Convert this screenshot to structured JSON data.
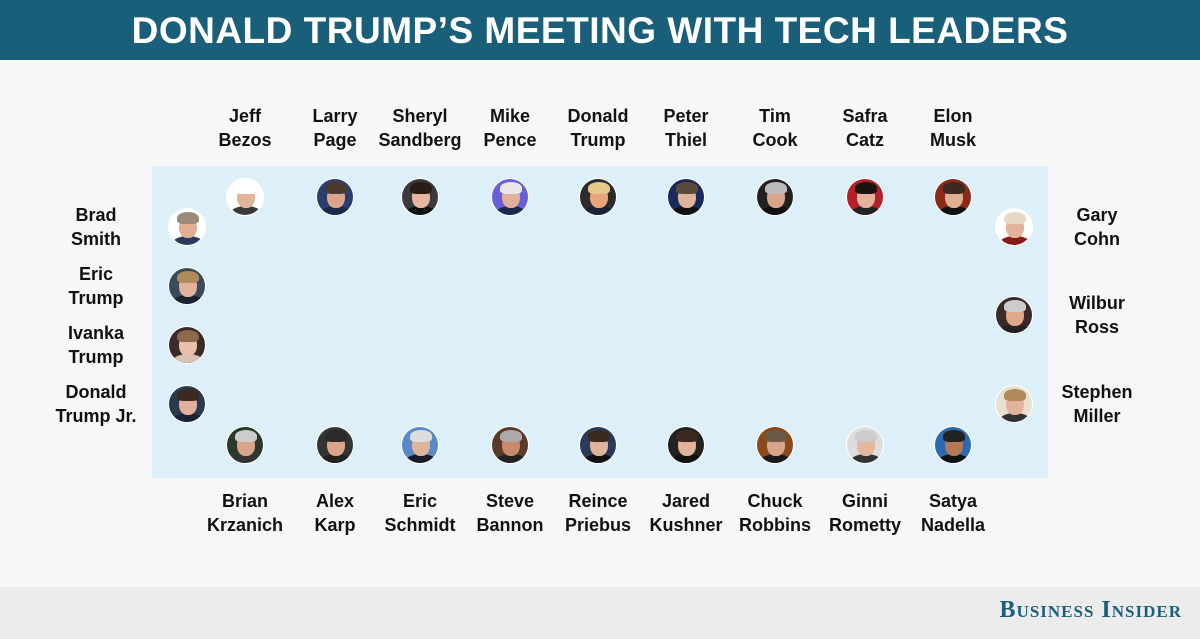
{
  "title": "DONALD TRUMP’S MEETING WITH TECH LEADERS",
  "brand": "Business Insider",
  "top_row": [
    {
      "line1": "Jeff",
      "line2": "Bezos",
      "bg": "#ffffff",
      "hair": "#ffffff",
      "skin": "#e2b49a",
      "body": "#3a3a3a"
    },
    {
      "line1": "Larry",
      "line2": "Page",
      "bg": "#2c3e70",
      "hair": "#4a3a2c",
      "skin": "#d9a58a",
      "body": "#1e2a4a"
    },
    {
      "line1": "Sheryl",
      "line2": "Sandberg",
      "bg": "#3a3a3a",
      "hair": "#2a1c14",
      "skin": "#e6b7a0",
      "body": "#111111"
    },
    {
      "line1": "Mike",
      "line2": "Pence",
      "bg": "#6b5fd6",
      "hair": "#e8e8e8",
      "skin": "#e0b09a",
      "body": "#1a2a4a"
    },
    {
      "line1": "Donald",
      "line2": "Trump",
      "bg": "#2b2b2b",
      "hair": "#e6c98a",
      "skin": "#e8a57a",
      "body": "#1a2233"
    },
    {
      "line1": "Peter",
      "line2": "Thiel",
      "bg": "#1a2a5a",
      "hair": "#5a4a3a",
      "skin": "#e0b49a",
      "body": "#111111"
    },
    {
      "line1": "Tim",
      "line2": "Cook",
      "bg": "#222222",
      "hair": "#bbbbbb",
      "skin": "#d9a58a",
      "body": "#111111"
    },
    {
      "line1": "Safra",
      "line2": "Catz",
      "bg": "#b3202a",
      "hair": "#1a1410",
      "skin": "#e3b29a",
      "body": "#222222"
    },
    {
      "line1": "Elon",
      "line2": "Musk",
      "bg": "#8a2a1a",
      "hair": "#3a2a20",
      "skin": "#e0ae92",
      "body": "#111111"
    }
  ],
  "bottom_row": [
    {
      "line1": "Brian",
      "line2": "Krzanich",
      "bg": "#2a3a2a",
      "hair": "#cccccc",
      "skin": "#d9a58a",
      "body": "#333333"
    },
    {
      "line1": "Alex",
      "line2": "Karp",
      "bg": "#333333",
      "hair": "#2a2a2a",
      "skin": "#d9a58a",
      "body": "#222222"
    },
    {
      "line1": "Eric",
      "line2": "Schmidt",
      "bg": "#5a8ac6",
      "hair": "#dddddd",
      "skin": "#e0b49a",
      "body": "#1a1a2a"
    },
    {
      "line1": "Steve",
      "line2": "Bannon",
      "bg": "#5a3a2a",
      "hair": "#aaaaaa",
      "skin": "#c98a6a",
      "body": "#222222"
    },
    {
      "line1": "Reince",
      "line2": "Priebus",
      "bg": "#2a3a5a",
      "hair": "#3a2a20",
      "skin": "#e0b49a",
      "body": "#111111"
    },
    {
      "line1": "Jared",
      "line2": "Kushner",
      "bg": "#222222",
      "hair": "#3a2a20",
      "skin": "#e3b29a",
      "body": "#111111"
    },
    {
      "line1": "Chuck",
      "line2": "Robbins",
      "bg": "#8a4a1a",
      "hair": "#6a5a4a",
      "skin": "#d9a58a",
      "body": "#1a1a1a"
    },
    {
      "line1": "Ginni",
      "line2": "Rometty",
      "bg": "#dddddd",
      "hair": "#cccccc",
      "skin": "#e6b7a0",
      "body": "#333333"
    },
    {
      "line1": "Satya",
      "line2": "Nadella",
      "bg": "#2a6ab0",
      "hair": "#222222",
      "skin": "#b07a5a",
      "body": "#111111"
    }
  ],
  "left_side": [
    {
      "line1": "Brad",
      "line2": "Smith",
      "bg": "#ffffff",
      "hair": "#9a8a7a",
      "skin": "#e0ae92",
      "body": "#2a3a5a"
    },
    {
      "line1": "Eric",
      "line2": "Trump",
      "bg": "#3a4a5a",
      "hair": "#b08a5a",
      "skin": "#e3b29a",
      "body": "#1a2233"
    },
    {
      "line1": "Ivanka",
      "line2": "Trump",
      "bg": "#3a2a2a",
      "hair": "#8a6a4a",
      "skin": "#ebc0a8",
      "body": "#d9c3b0"
    },
    {
      "line1": "Donald",
      "line2": "Trump Jr.",
      "bg": "#2a3a4a",
      "hair": "#3a2a20",
      "skin": "#e0b09a",
      "body": "#1a2233"
    }
  ],
  "right_side": [
    {
      "line1": "Gary",
      "line2": "Cohn",
      "bg": "#ffffff",
      "hair": "#e8d8c8",
      "skin": "#e3b29a",
      "body": "#8a1a1a"
    },
    {
      "line1": "Wilbur",
      "line2": "Ross",
      "bg": "#3a2a2a",
      "hair": "#cccccc",
      "skin": "#e0a88a",
      "body": "#222222"
    },
    {
      "line1": "Stephen",
      "line2": "Miller",
      "bg": "#e8e0d0",
      "hair": "#b08a5a",
      "skin": "#e3b29a",
      "body": "#333333"
    }
  ]
}
